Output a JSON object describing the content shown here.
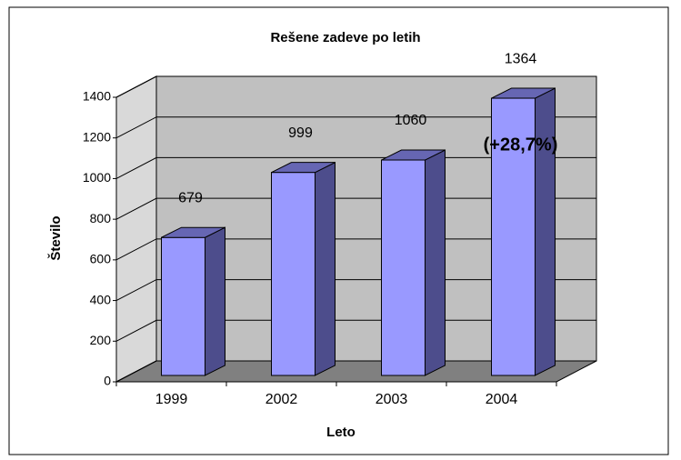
{
  "chart_data": {
    "type": "bar3d",
    "title": "Rešene zadeve po letih",
    "x_label": "Leto",
    "y_label": "Število",
    "categories": [
      "1999",
      "2002",
      "2003",
      "2004"
    ],
    "values": [
      679,
      999,
      1060,
      1364
    ],
    "color": "#9999ff",
    "annotation": "(+28,7%)",
    "ylim": [
      0,
      1400
    ],
    "yticks": [
      0,
      200,
      400,
      600,
      800,
      1000,
      1200,
      1400
    ],
    "grid": true
  }
}
